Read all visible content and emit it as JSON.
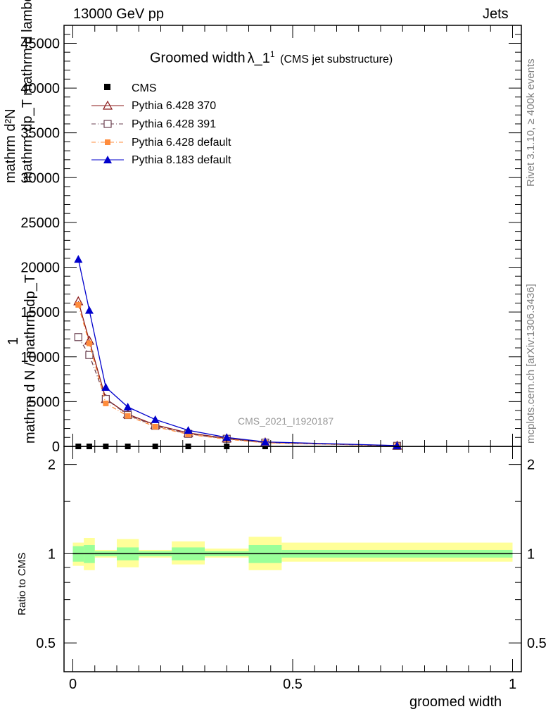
{
  "header": {
    "left": "13000 GeV pp",
    "right": "Jets"
  },
  "title": {
    "main": "Groomed width",
    "symbol": "λ_1",
    "superscript": "1",
    "sub": "(CMS jet substructure)"
  },
  "side_labels": {
    "rivet": "Rivet 3.1.10, ≥ 400k events",
    "mcplots": "mcplots.cern.ch [arXiv:1306.3436]"
  },
  "watermark": "CMS_2021_I1920187",
  "ylabel_main": {
    "line_numerator": "mathrm d²N",
    "line_denominator": "mathrm dp_T mathrm d lambda",
    "frac_one": "1",
    "frac_den": "mathrm d N / mathrm dp_T"
  },
  "ylabel_ratio": "Ratio to CMS",
  "xlabel": "groomed width",
  "colors": {
    "p370": "#8b1a1a",
    "p391": "#6b4050",
    "pdef": "#ff8c3c",
    "p8": "#0000cc",
    "band_yellow": "#ffff99",
    "band_green": "#99ff99",
    "label_gray": "#808080"
  },
  "chart_data": {
    "type": "line",
    "x_edges": [
      0,
      0.025,
      0.05,
      0.1,
      0.15,
      0.225,
      0.3,
      0.4,
      0.475,
      1.0
    ],
    "x_centers": [
      0.0125,
      0.0375,
      0.075,
      0.125,
      0.1875,
      0.2625,
      0.35,
      0.4375,
      0.7375
    ],
    "xlim": [
      -0.02,
      1.02
    ],
    "ylim": [
      0,
      47000
    ],
    "yticks": [
      0,
      5000,
      10000,
      15000,
      20000,
      25000,
      30000,
      35000,
      40000,
      45000
    ],
    "xticks": [
      0,
      0.5,
      1
    ],
    "ratio_ylim": [
      0.4,
      2.3
    ],
    "ratio_yticks": [
      0.5,
      1,
      2
    ],
    "series": [
      {
        "name": "CMS",
        "key": "cms",
        "marker": "square-filled",
        "values": [
          0,
          0,
          0,
          0,
          0,
          0,
          0,
          0,
          0
        ]
      },
      {
        "name": "Pythia 6.428 370",
        "key": "p370",
        "marker": "triangle-open",
        "line": "solid",
        "values": [
          16200,
          11800,
          5300,
          3600,
          2400,
          1500,
          900,
          450,
          80
        ]
      },
      {
        "name": "Pythia 6.428 391",
        "key": "p391",
        "marker": "square-open",
        "line": "dashdot",
        "values": [
          12200,
          10200,
          5300,
          3500,
          2300,
          1400,
          850,
          420,
          60
        ]
      },
      {
        "name": "Pythia 6.428 default",
        "key": "pdef",
        "marker": "square-filled",
        "line": "dashdot",
        "values": [
          15800,
          11500,
          4800,
          3400,
          2200,
          1350,
          800,
          400,
          70
        ]
      },
      {
        "name": "Pythia 8.183 default",
        "key": "p8",
        "marker": "triangle-filled",
        "line": "solid",
        "values": [
          20900,
          15200,
          6600,
          4400,
          3000,
          1800,
          1000,
          500,
          90
        ]
      }
    ],
    "cms_ratio_bands": {
      "inner": [
        [
          0.94,
          1.06
        ],
        [
          0.93,
          1.07
        ],
        [
          0.98,
          1.02
        ],
        [
          0.95,
          1.05
        ],
        [
          0.98,
          1.02
        ],
        [
          0.95,
          1.05
        ],
        [
          0.98,
          1.02
        ],
        [
          0.93,
          1.07
        ],
        [
          0.97,
          1.03
        ]
      ],
      "outer": [
        [
          0.91,
          1.09
        ],
        [
          0.88,
          1.13
        ],
        [
          0.97,
          1.03
        ],
        [
          0.9,
          1.12
        ],
        [
          0.97,
          1.03
        ],
        [
          0.92,
          1.1
        ],
        [
          0.97,
          1.04
        ],
        [
          0.88,
          1.14
        ],
        [
          0.94,
          1.09
        ]
      ]
    }
  }
}
